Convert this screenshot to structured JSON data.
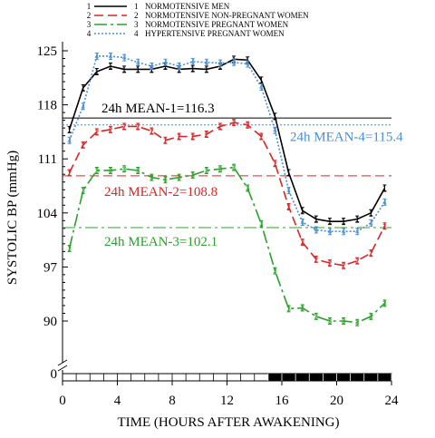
{
  "chart_data": {
    "type": "line",
    "xlabel": "TIME (HOURS AFTER AWAKENING)",
    "ylabel": "SYSTOLIC BP (mmHg)",
    "xlim": [
      0,
      24
    ],
    "ylim": [
      90,
      125
    ],
    "x_ticks": [
      0,
      4,
      8,
      12,
      16,
      20,
      24
    ],
    "y_ticks": [
      0,
      90,
      97,
      104,
      111,
      118,
      125
    ],
    "y_axis_break": true,
    "night_period_hours": [
      15,
      24
    ],
    "legend_position": "top-left",
    "series": [
      {
        "num": "1",
        "name": "NORMOTENSIVE  MEN",
        "color": "#000000",
        "x": [
          0.5,
          1.5,
          2.5,
          3.5,
          4.5,
          5.5,
          6.5,
          7.5,
          8.5,
          9.5,
          10.5,
          11.5,
          12.5,
          13.5,
          14.5,
          15.5,
          16.5,
          17.5,
          18.5,
          19.5,
          20.5,
          21.5,
          22.5,
          23.5
        ],
        "values": [
          114.8,
          120.2,
          122.3,
          123,
          122.6,
          122.6,
          122.6,
          123,
          122.6,
          122.7,
          122.6,
          123,
          123.9,
          123.8,
          121.2,
          116.5,
          109.2,
          104.3,
          103.2,
          102.9,
          102.9,
          103.2,
          104,
          107.2
        ],
        "mean_value": 116.3,
        "mean_label": "24h MEAN-1=116.3"
      },
      {
        "num": "2",
        "name": "NORMOTENSIVE  NON-PREGNANT  WOMEN",
        "color": "#d62728",
        "x": [
          0.5,
          1.5,
          2.5,
          3.5,
          4.5,
          5.5,
          6.5,
          7.5,
          8.5,
          9.5,
          10.5,
          11.5,
          12.5,
          13.5,
          14.5,
          15.5,
          16.5,
          17.5,
          18.5,
          19.5,
          20.5,
          21.5,
          22.5,
          23.5
        ],
        "values": [
          109.2,
          112.8,
          114.5,
          114.8,
          115.2,
          115.2,
          114.6,
          113.4,
          113.9,
          113.9,
          114.2,
          115.2,
          115.7,
          115.4,
          113.9,
          110.4,
          104.8,
          100.2,
          98,
          97.5,
          97.2,
          97.8,
          98.8,
          102.3
        ],
        "mean_value": 108.8,
        "mean_label": "24h MEAN-2=108.8"
      },
      {
        "num": "3",
        "name": "NORMOTENSIVE  PREGNANT  WOMEN",
        "color": "#2ca02c",
        "x": [
          0.5,
          1.5,
          2.5,
          3.5,
          4.5,
          5.5,
          6.5,
          7.5,
          8.5,
          9.5,
          10.5,
          11.5,
          12.5,
          13.5,
          14.5,
          15.5,
          16.5,
          17.5,
          18.5,
          19.5,
          20.5,
          21.5,
          22.5,
          23.5
        ],
        "values": [
          99.4,
          106.9,
          109.5,
          109.5,
          109.7,
          109.5,
          108.6,
          108.3,
          108.6,
          108.9,
          109.5,
          109.7,
          109.9,
          107.2,
          102.6,
          96.5,
          91.6,
          91.7,
          90.6,
          90,
          90,
          89.8,
          90.6,
          92.3
        ],
        "mean_value": 102.1,
        "mean_label": "24h MEAN-3=102.1"
      },
      {
        "num": "4",
        "name": "HYPERTENSIVE  PREGNANT  WOMEN",
        "color": "#4a8fd0",
        "x": [
          0.5,
          1.5,
          2.5,
          3.5,
          4.5,
          5.5,
          6.5,
          7.5,
          8.5,
          9.5,
          10.5,
          11.5,
          12.5,
          13.5,
          14.5,
          15.5,
          16.5,
          17.5,
          18.5,
          19.5,
          20.5,
          21.5,
          22.5,
          23.5
        ],
        "values": [
          113.4,
          117.8,
          124.3,
          124.3,
          124.1,
          123.5,
          123,
          123.5,
          123,
          123.6,
          123.5,
          123.4,
          123.5,
          123.3,
          120.3,
          114.7,
          106.9,
          102.8,
          101.8,
          101.6,
          101.6,
          101.6,
          102.7,
          105.4
        ],
        "mean_value": 115.4,
        "mean_label": "24h MEAN-4=115.4"
      }
    ]
  }
}
